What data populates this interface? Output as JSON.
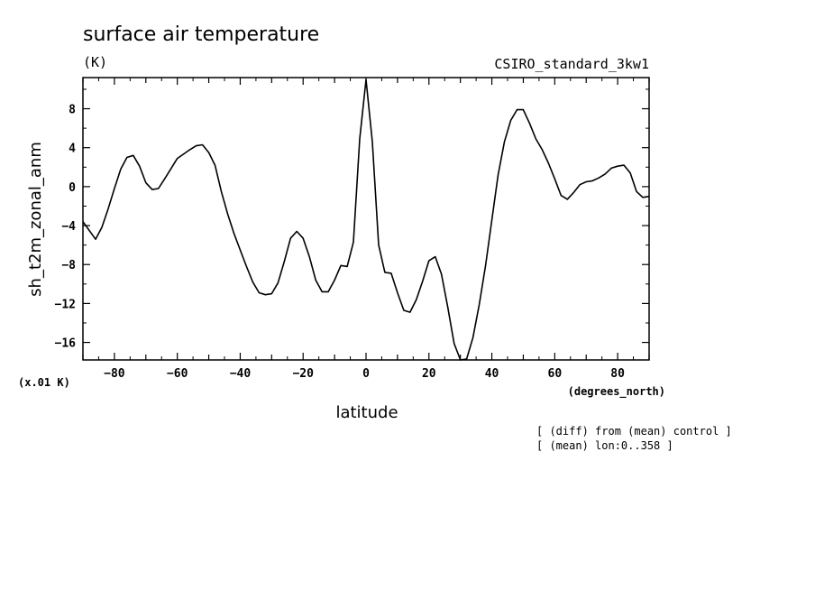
{
  "chart_data": {
    "type": "line",
    "title": "surface air temperature",
    "units_label": "(K)",
    "model_label": "CSIRO_standard_3kw1",
    "ylabel": "sh_t2m_zonal_anm",
    "xlabel": "latitude",
    "x_units": "(degrees_north)",
    "scale_note": "(x.01 K)",
    "notes": [
      "[ (diff) from (mean) control ]",
      "[ (mean) lon:0..358 ]"
    ],
    "xlim": [
      -90,
      90
    ],
    "ylim": [
      -17.8,
      11.2
    ],
    "xticks": [
      -80,
      -60,
      -40,
      -20,
      0,
      20,
      40,
      60,
      80
    ],
    "xtick_labels": [
      "−80",
      "−60",
      "−40",
      "−20",
      "0",
      "20",
      "40",
      "60",
      "80"
    ],
    "yticks": [
      -16,
      -12,
      -8,
      -4,
      0,
      4,
      8
    ],
    "ytick_labels": [
      "−16",
      "−12",
      "−8",
      "−4",
      "0",
      "4",
      "8"
    ],
    "grid": false,
    "series": [
      {
        "name": "sh_t2m_zonal_anm",
        "x": [
          -90,
          -86,
          -84,
          -82,
          -80,
          -78,
          -76,
          -74,
          -72,
          -70,
          -68,
          -66,
          -64,
          -60,
          -56,
          -54,
          -52,
          -50,
          -48,
          -46,
          -44,
          -42,
          -40,
          -38,
          -36,
          -34,
          -32,
          -30,
          -28,
          -26,
          -24,
          -22,
          -20,
          -18,
          -16,
          -14,
          -12,
          -10,
          -8,
          -6,
          -4,
          -2,
          0,
          2,
          4,
          6,
          8,
          10,
          12,
          14,
          16,
          18,
          20,
          22,
          24,
          26,
          28,
          30,
          32,
          34,
          36,
          38,
          40,
          42,
          44,
          46,
          48,
          50,
          52,
          54,
          56,
          58,
          60,
          62,
          64,
          66,
          68,
          70,
          72,
          74,
          76,
          78,
          80,
          82,
          84,
          86,
          88,
          90
        ],
        "y": [
          -3.6,
          -5.4,
          -4.2,
          -2.3,
          -0.2,
          1.8,
          3.0,
          3.2,
          2.1,
          0.4,
          -0.3,
          -0.2,
          0.8,
          2.9,
          3.8,
          4.2,
          4.3,
          3.5,
          2.2,
          -0.5,
          -2.8,
          -4.8,
          -6.5,
          -8.2,
          -9.8,
          -10.9,
          -11.1,
          -11.0,
          -9.9,
          -7.7,
          -5.3,
          -4.6,
          -5.3,
          -7.2,
          -9.6,
          -10.8,
          -10.8,
          -9.6,
          -8.1,
          -8.2,
          -5.7,
          4.9,
          11.0,
          4.6,
          -6.0,
          -8.8,
          -8.9,
          -10.9,
          -12.7,
          -12.9,
          -11.6,
          -9.7,
          -7.6,
          -7.2,
          -9.0,
          -12.4,
          -16.1,
          -17.8,
          -17.7,
          -15.5,
          -12.1,
          -8.1,
          -3.4,
          1.2,
          4.6,
          6.8,
          7.9,
          7.9,
          6.5,
          4.9,
          3.8,
          2.4,
          0.8,
          -0.9,
          -1.3,
          -0.6,
          0.2,
          0.5,
          0.6,
          0.9,
          1.3,
          1.9,
          2.1,
          2.2,
          1.4,
          -0.5,
          -1.1,
          -1.0
        ]
      }
    ]
  }
}
